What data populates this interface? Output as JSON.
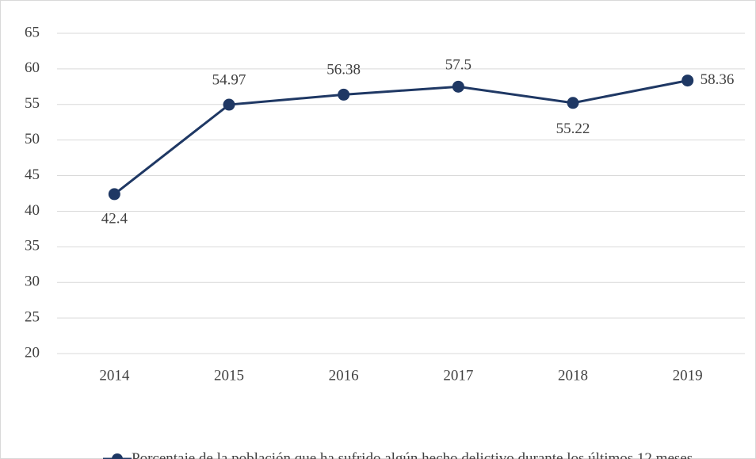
{
  "chart_data": {
    "type": "line",
    "categories": [
      "2014",
      "2015",
      "2016",
      "2017",
      "2018",
      "2019"
    ],
    "series": [
      {
        "name": "Porcentaje de la población que ha sufrido algún hecho delictivo durante los últimos 12 meses",
        "color": "#1f3864",
        "values": [
          42.4,
          54.97,
          56.38,
          57.5,
          55.22,
          58.36
        ]
      }
    ],
    "ylim": [
      20,
      65
    ],
    "yticks": [
      20,
      25,
      30,
      35,
      40,
      45,
      50,
      55,
      60,
      65
    ],
    "grid": true,
    "legend": "bottom"
  }
}
